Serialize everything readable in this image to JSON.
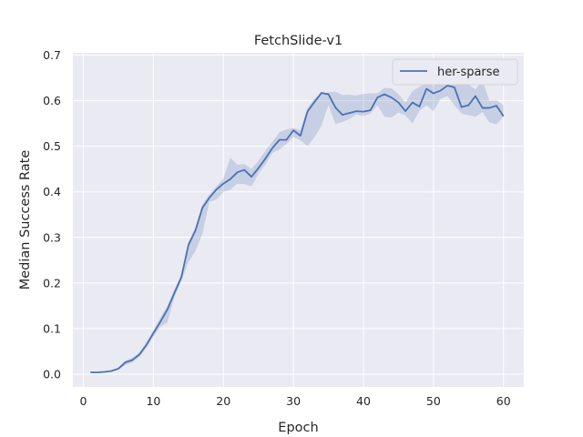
{
  "chart_data": {
    "type": "line",
    "title": "FetchSlide-v1",
    "xlabel": "Epoch",
    "ylabel": "Median Success Rate",
    "xlim": [
      -1.5,
      62.9
    ],
    "ylim": [
      -0.028,
      0.705
    ],
    "xticks": [
      "0",
      "10",
      "20",
      "30",
      "40",
      "50",
      "60"
    ],
    "yticks": [
      "0.0",
      "0.1",
      "0.2",
      "0.3",
      "0.4",
      "0.5",
      "0.6",
      "0.7"
    ],
    "grid": true,
    "legend_position": "top-right",
    "colors": {
      "background": "#eaeaf2",
      "grid": "#ffffff",
      "line": "#4c72b0",
      "band": "#4c72b0"
    },
    "series": [
      {
        "name": "her-sparse",
        "x": [
          1,
          2,
          3,
          4,
          5,
          6,
          7,
          8,
          9,
          10,
          11,
          12,
          13,
          14,
          15,
          16,
          17,
          18,
          19,
          20,
          21,
          22,
          23,
          24,
          25,
          26,
          27,
          28,
          29,
          30,
          31,
          32,
          33,
          34,
          35,
          36,
          37,
          38,
          39,
          40,
          41,
          42,
          43,
          44,
          45,
          46,
          47,
          48,
          49,
          50,
          51,
          52,
          53,
          54,
          55,
          56,
          57,
          58,
          59,
          60
        ],
        "y": [
          0.004,
          0.004,
          0.005,
          0.007,
          0.012,
          0.026,
          0.031,
          0.043,
          0.064,
          0.09,
          0.115,
          0.142,
          0.178,
          0.213,
          0.283,
          0.315,
          0.365,
          0.387,
          0.405,
          0.418,
          0.428,
          0.443,
          0.448,
          0.433,
          0.452,
          0.473,
          0.496,
          0.514,
          0.514,
          0.535,
          0.523,
          0.576,
          0.597,
          0.617,
          0.614,
          0.585,
          0.569,
          0.573,
          0.577,
          0.576,
          0.579,
          0.607,
          0.614,
          0.607,
          0.596,
          0.577,
          0.596,
          0.587,
          0.626,
          0.616,
          0.622,
          0.633,
          0.629,
          0.586,
          0.59,
          0.61,
          0.584,
          0.584,
          0.589,
          0.566
        ],
        "lower": [
          0.003,
          0.003,
          0.004,
          0.006,
          0.01,
          0.02,
          0.026,
          0.038,
          0.058,
          0.082,
          0.104,
          0.113,
          0.17,
          0.204,
          0.246,
          0.27,
          0.308,
          0.378,
          0.383,
          0.4,
          0.405,
          0.418,
          0.417,
          0.412,
          0.44,
          0.46,
          0.485,
          0.493,
          0.505,
          0.52,
          0.513,
          0.5,
          0.52,
          0.545,
          0.59,
          0.549,
          0.553,
          0.56,
          0.57,
          0.566,
          0.572,
          0.59,
          0.565,
          0.563,
          0.574,
          0.568,
          0.55,
          0.578,
          0.59,
          0.577,
          0.604,
          0.61,
          0.59,
          0.572,
          0.568,
          0.565,
          0.575,
          0.552,
          0.548,
          0.565
        ],
        "upper": [
          0.005,
          0.005,
          0.006,
          0.008,
          0.014,
          0.03,
          0.036,
          0.048,
          0.07,
          0.096,
          0.124,
          0.15,
          0.186,
          0.22,
          0.29,
          0.322,
          0.372,
          0.395,
          0.412,
          0.43,
          0.475,
          0.459,
          0.461,
          0.45,
          0.468,
          0.49,
          0.51,
          0.531,
          0.537,
          0.54,
          0.535,
          0.583,
          0.605,
          0.615,
          0.618,
          0.62,
          0.612,
          0.613,
          0.611,
          0.615,
          0.616,
          0.616,
          0.628,
          0.627,
          0.614,
          0.596,
          0.621,
          0.63,
          0.64,
          0.632,
          0.643,
          0.641,
          0.645,
          0.64,
          0.635,
          0.625,
          0.644,
          0.6,
          0.601,
          0.59
        ]
      }
    ]
  }
}
